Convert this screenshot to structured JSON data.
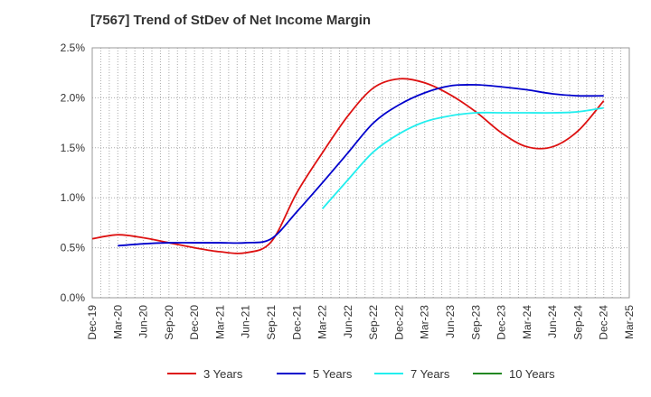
{
  "chart_data": {
    "type": "line",
    "title": "[7567]  Trend of StDev of Net Income Margin",
    "xlabel": "",
    "ylabel": "",
    "ylim": [
      0,
      2.5
    ],
    "y_ticks": [
      "0.0%",
      "0.5%",
      "1.0%",
      "1.5%",
      "2.0%",
      "2.5%"
    ],
    "y_tick_values": [
      0,
      0.5,
      1.0,
      1.5,
      2.0,
      2.5
    ],
    "categories": [
      "Dec-19",
      "Mar-20",
      "Jun-20",
      "Sep-20",
      "Dec-20",
      "Mar-21",
      "Jun-21",
      "Sep-21",
      "Dec-21",
      "Mar-22",
      "Jun-22",
      "Sep-22",
      "Dec-22",
      "Mar-23",
      "Jun-23",
      "Sep-23",
      "Dec-23",
      "Mar-24",
      "Jun-24",
      "Sep-24",
      "Dec-24",
      "Mar-25"
    ],
    "grid": true,
    "legend_position": "bottom",
    "series": [
      {
        "name": "3 Years",
        "color": "#dd1111",
        "values": [
          0.59,
          0.63,
          0.6,
          0.55,
          0.5,
          0.46,
          0.45,
          0.56,
          1.05,
          1.45,
          1.82,
          2.1,
          2.19,
          2.15,
          2.03,
          1.86,
          1.65,
          1.51,
          1.51,
          1.67,
          1.97,
          null
        ]
      },
      {
        "name": "5 Years",
        "color": "#0000cc",
        "values": [
          null,
          0.52,
          0.54,
          0.55,
          0.55,
          0.55,
          0.55,
          0.59,
          0.86,
          1.15,
          1.45,
          1.75,
          1.93,
          2.05,
          2.12,
          2.13,
          2.11,
          2.08,
          2.04,
          2.02,
          2.02,
          null
        ]
      },
      {
        "name": "7 Years",
        "color": "#22eeee",
        "values": [
          null,
          null,
          null,
          null,
          null,
          null,
          null,
          null,
          null,
          0.89,
          1.18,
          1.46,
          1.64,
          1.76,
          1.82,
          1.85,
          1.85,
          1.85,
          1.85,
          1.86,
          1.9,
          null
        ]
      },
      {
        "name": "10 Years",
        "color": "#228822",
        "values": [
          null,
          null,
          null,
          null,
          null,
          null,
          null,
          null,
          null,
          null,
          null,
          null,
          null,
          null,
          null,
          null,
          null,
          null,
          null,
          null,
          null,
          null
        ]
      }
    ]
  }
}
